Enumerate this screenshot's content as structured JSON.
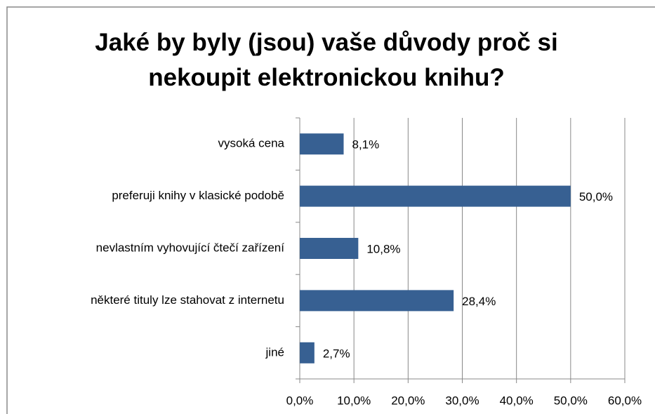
{
  "chart_data": {
    "type": "barh",
    "title": "Jaké by byly (jsou) vaše důvody proč si nekoupit elektronickou knihu?",
    "categories": [
      "vysoká cena",
      "preferuji knihy v klasické podobě",
      "nevlastním vyhovující čtečí zařízení",
      "některé tituly lze stahovat z internetu",
      "jiné"
    ],
    "values": [
      8.1,
      50.0,
      10.8,
      28.4,
      2.7
    ],
    "value_labels": [
      "8,1%",
      "50,0%",
      "10,8%",
      "28,4%",
      "2,7%"
    ],
    "color": "#376092",
    "xlim": [
      0,
      60
    ],
    "xticks": [
      {
        "value": 0,
        "label": "0,0%"
      },
      {
        "value": 10,
        "label": "10,0%"
      },
      {
        "value": 20,
        "label": "20,0%"
      },
      {
        "value": 30,
        "label": "30,0%"
      },
      {
        "value": 40,
        "label": "40,0%"
      },
      {
        "value": 50,
        "label": "50,0%"
      },
      {
        "value": 60,
        "label": "60,0%"
      }
    ],
    "grid": true
  }
}
